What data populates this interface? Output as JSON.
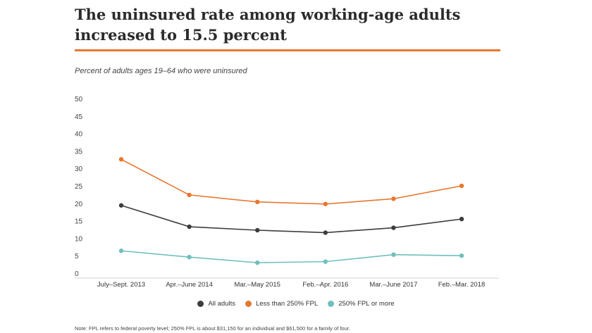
{
  "chart_data": {
    "type": "line",
    "title": "The uninsured rate among working-age adults increased to 15.5 percent",
    "subtitle": "Percent of adults ages 19–64 who were uninsured",
    "categories": [
      "July–Sept. 2013",
      "Apr.–June 2014",
      "Mar.–May 2015",
      "Feb.–Apr. 2016",
      "Mar.–June 2017",
      "Feb.–Mar. 2018"
    ],
    "y_ticks": [
      "0",
      "5",
      "10",
      "15",
      "20",
      "25",
      "30",
      "35",
      "40",
      "45",
      "50"
    ],
    "ylim": [
      0,
      50
    ],
    "grid": false,
    "legend_position": "bottom",
    "series": [
      {
        "name": "All adults",
        "color": "#3d3d3d",
        "values": [
          19.4,
          13.3,
          12.3,
          11.6,
          13.0,
          15.5
        ]
      },
      {
        "name": "Less than 250% FPL",
        "color": "#e8772e",
        "values": [
          32.6,
          22.4,
          20.4,
          19.8,
          21.3,
          25.0
        ]
      },
      {
        "name": "250% FPL or more",
        "color": "#6fbfbd",
        "values": [
          6.4,
          4.6,
          3.0,
          3.3,
          5.3,
          5.0
        ]
      }
    ],
    "note": "Note: FPL refers to federal poverty level; 250% FPL is about $31,150 for an individual and $61,500 for a family of four."
  }
}
